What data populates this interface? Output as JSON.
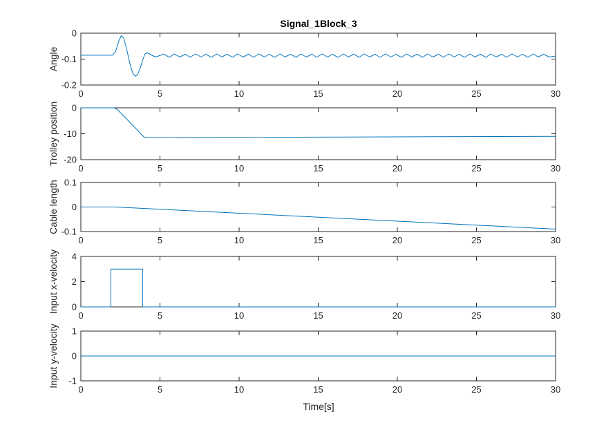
{
  "figure": {
    "title": "Signal_1Block_3",
    "xlabel": "Time[s]",
    "line_color": "#0072BD"
  },
  "chart_data": [
    {
      "type": "line",
      "ylabel": "Angle",
      "xlim": [
        0,
        30
      ],
      "ylim": [
        -0.2,
        0
      ],
      "xticks": [
        0,
        5,
        10,
        15,
        20,
        25,
        30
      ],
      "yticks": [
        -0.2,
        -0.1,
        0
      ],
      "ytick_labels": [
        "-0.2",
        "-0.1",
        "0"
      ],
      "series": [
        {
          "x": [
            0,
            2.0,
            2.2,
            2.4,
            2.55,
            2.7,
            2.85,
            3.0,
            3.15,
            3.3,
            3.45,
            3.6,
            3.75,
            3.9,
            4.05,
            4.2,
            4.4,
            4.7,
            5.0,
            5.25,
            5.6,
            5.9,
            6.25,
            6.6,
            6.9,
            7.25,
            7.6,
            7.9,
            8.25,
            8.6,
            8.9,
            9.25,
            9.6,
            9.9,
            10.25,
            10.6,
            10.9,
            11.25,
            11.6,
            11.9,
            12.25,
            12.6,
            12.9,
            13.25,
            13.6,
            13.9,
            14.25,
            14.6,
            14.9,
            15.25,
            15.6,
            15.9,
            16.25,
            16.6,
            16.9,
            17.25,
            17.6,
            17.9,
            18.25,
            18.6,
            18.9,
            19.25,
            19.6,
            19.9,
            20.25,
            20.6,
            20.9,
            21.25,
            21.6,
            21.9,
            22.25,
            22.6,
            22.9,
            23.25,
            23.6,
            23.9,
            24.25,
            24.6,
            24.9,
            25.25,
            25.6,
            25.9,
            26.25,
            26.6,
            26.9,
            27.25,
            27.6,
            27.9,
            28.25,
            28.6,
            28.9,
            29.25,
            29.6,
            30
          ],
          "y": [
            -0.085,
            -0.085,
            -0.07,
            -0.03,
            -0.01,
            -0.018,
            -0.05,
            -0.09,
            -0.13,
            -0.157,
            -0.166,
            -0.158,
            -0.135,
            -0.105,
            -0.08,
            -0.076,
            -0.082,
            -0.092,
            -0.086,
            -0.081,
            -0.093,
            -0.08,
            -0.092,
            -0.081,
            -0.093,
            -0.08,
            -0.092,
            -0.081,
            -0.093,
            -0.08,
            -0.092,
            -0.081,
            -0.093,
            -0.08,
            -0.092,
            -0.081,
            -0.093,
            -0.08,
            -0.092,
            -0.081,
            -0.093,
            -0.08,
            -0.092,
            -0.081,
            -0.093,
            -0.08,
            -0.092,
            -0.081,
            -0.093,
            -0.08,
            -0.092,
            -0.081,
            -0.093,
            -0.08,
            -0.092,
            -0.081,
            -0.093,
            -0.08,
            -0.092,
            -0.081,
            -0.093,
            -0.08,
            -0.092,
            -0.081,
            -0.093,
            -0.08,
            -0.092,
            -0.081,
            -0.093,
            -0.08,
            -0.092,
            -0.081,
            -0.093,
            -0.08,
            -0.092,
            -0.081,
            -0.093,
            -0.08,
            -0.092,
            -0.081,
            -0.093,
            -0.08,
            -0.092,
            -0.081,
            -0.093,
            -0.08,
            -0.092,
            -0.081,
            -0.093,
            -0.08,
            -0.092,
            -0.081,
            -0.092,
            -0.088
          ]
        }
      ]
    },
    {
      "type": "line",
      "ylabel": "Trolley position",
      "xlim": [
        0,
        30
      ],
      "ylim": [
        -20,
        0
      ],
      "xticks": [
        0,
        5,
        10,
        15,
        20,
        25,
        30
      ],
      "yticks": [
        -20,
        -10,
        0
      ],
      "ytick_labels": [
        "-20",
        "-10",
        "0"
      ],
      "series": [
        {
          "x": [
            0,
            2.1,
            2.3,
            4.0,
            4.2,
            30
          ],
          "y": [
            0,
            0,
            -0.6,
            -11.3,
            -11.5,
            -11.0
          ]
        }
      ]
    },
    {
      "type": "line",
      "ylabel": "Cable length",
      "xlim": [
        0,
        30
      ],
      "ylim": [
        -0.1,
        0.1
      ],
      "xticks": [
        0,
        5,
        10,
        15,
        20,
        25,
        30
      ],
      "yticks": [
        -0.1,
        0,
        0.1
      ],
      "ytick_labels": [
        "-0.1",
        "0",
        "0.1"
      ],
      "series": [
        {
          "x": [
            0,
            2.2,
            30
          ],
          "y": [
            0,
            0,
            -0.09
          ]
        }
      ]
    },
    {
      "type": "line",
      "ylabel": "Input x-velocity",
      "xlim": [
        0,
        30
      ],
      "ylim": [
        0,
        4
      ],
      "xticks": [
        0,
        5,
        10,
        15,
        20,
        25,
        30
      ],
      "yticks": [
        0,
        2,
        4
      ],
      "ytick_labels": [
        "0",
        "2",
        "4"
      ],
      "series": [
        {
          "x": [
            0,
            1.9,
            1.9,
            3.9,
            3.9,
            30
          ],
          "y": [
            0,
            0,
            3,
            3,
            0,
            0
          ]
        }
      ]
    },
    {
      "type": "line",
      "ylabel": "Input y-velocity",
      "xlim": [
        0,
        30
      ],
      "ylim": [
        -1,
        1
      ],
      "xticks": [
        0,
        5,
        10,
        15,
        20,
        25,
        30
      ],
      "yticks": [
        -1,
        0,
        1
      ],
      "ytick_labels": [
        "-1",
        "0",
        "1"
      ],
      "series": [
        {
          "x": [
            0,
            30
          ],
          "y": [
            0,
            0
          ]
        }
      ]
    }
  ]
}
